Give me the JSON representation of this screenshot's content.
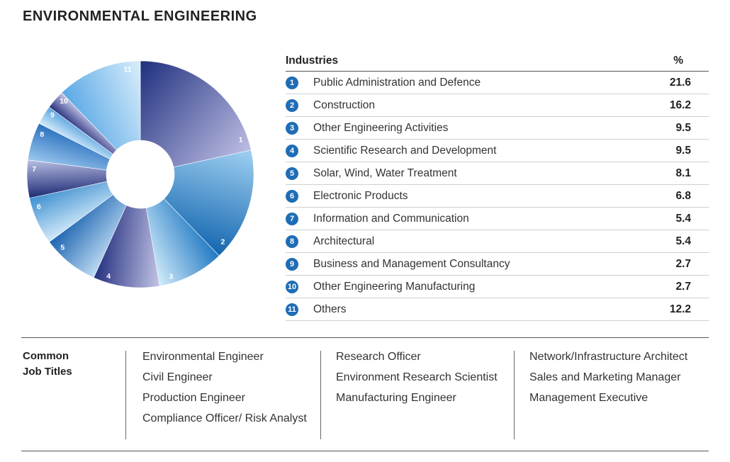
{
  "page": {
    "title": "ENVIRONMENTAL ENGINEERING"
  },
  "table": {
    "col_industry": "Industries",
    "col_pct": "%"
  },
  "chart_data": {
    "type": "pie",
    "categories": [
      "Public Administration and Defence",
      "Construction",
      "Other Engineering Activities",
      "Scientific Research and Development",
      "Solar, Wind, Water Treatment",
      "Electronic Products",
      "Information and Communication",
      "Architectural",
      "Business and Management Consultancy",
      "Other Engineering Manufacturing",
      "Others"
    ],
    "badges": [
      "1",
      "2",
      "3",
      "4",
      "5",
      "6",
      "7",
      "8",
      "9",
      "10",
      "11"
    ],
    "values": [
      21.6,
      16.2,
      9.5,
      9.5,
      8.1,
      6.8,
      5.4,
      5.4,
      2.7,
      2.7,
      12.2
    ],
    "value_labels": [
      "21.6",
      "16.2",
      "9.5",
      "9.5",
      "8.1",
      "6.8",
      "5.4",
      "5.4",
      "2.7",
      "2.7",
      "12.2"
    ],
    "slice_gradients": [
      [
        "#1f2f7e",
        "#bcbde2"
      ],
      [
        "#9fd0f1",
        "#1466b0"
      ],
      [
        "#1f78c2",
        "#d2ecfb"
      ],
      [
        "#c4c5e6",
        "#24307f"
      ],
      [
        "#bfdcf4",
        "#1c64b0"
      ],
      [
        "#d4ebfa",
        "#3f8fd0"
      ],
      [
        "#1d2a74",
        "#b9bfe4"
      ],
      [
        "#9cc8ef",
        "#2a70be"
      ],
      [
        "#d6ecfb",
        "#5aa4de"
      ],
      [
        "#262f7c",
        "#c6c8e8"
      ],
      [
        "#5aa8e6",
        "#d9eefb"
      ]
    ]
  },
  "jobs": {
    "label_line1": "Common",
    "label_line2": "Job Titles",
    "col1": [
      "Environmental Engineer",
      "Civil Engineer",
      "Production Engineer",
      "Compliance Officer/ Risk Analyst"
    ],
    "col2": [
      "Research Officer",
      "Environment Research Scientist",
      "Manufacturing Engineer"
    ],
    "col3": [
      "Network/Infrastructure Architect",
      "Sales and Marketing Manager",
      "Management Executive"
    ]
  }
}
